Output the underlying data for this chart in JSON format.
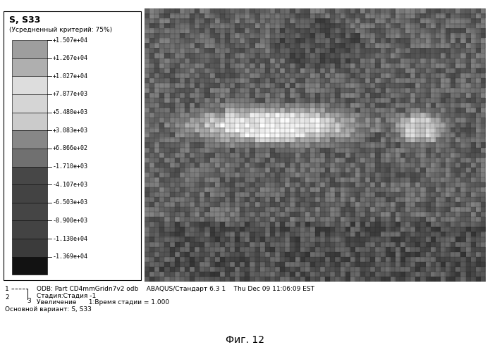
{
  "title": "S, S33",
  "subtitle": "(Усредненный критерий: 75%)",
  "legend_labels": [
    "+1.507e+04",
    "+1.267e+04",
    "+1.027e+04",
    "+7.877e+03",
    "+5.480e+03",
    "+3.083e+03",
    "+6.866e+02",
    "-1.710e+03",
    "-4.107e+03",
    "-6.503e+03",
    "-8.900e+03",
    "-1.130e+04",
    "-1.369e+04"
  ],
  "legend_grays": [
    0.72,
    0.62,
    0.88,
    0.78,
    0.68,
    0.52,
    0.44,
    0.38,
    0.32,
    0.27,
    0.22,
    0.16,
    0.1
  ],
  "footer_line1": "ODB: Part CD4mmGridn7v2 odb    ABAQUS/Стандарт 6.3 1    Thu Dec 09 11:06:09 EST",
  "footer_line2": "Стадия:Стадия -1",
  "footer_line3": "Увеличение      1:Время стадии = 1.000",
  "footer_line4": "Основной вариант: S, S33",
  "figure_label": "Фиг. 12",
  "bg_color": "#ffffff"
}
